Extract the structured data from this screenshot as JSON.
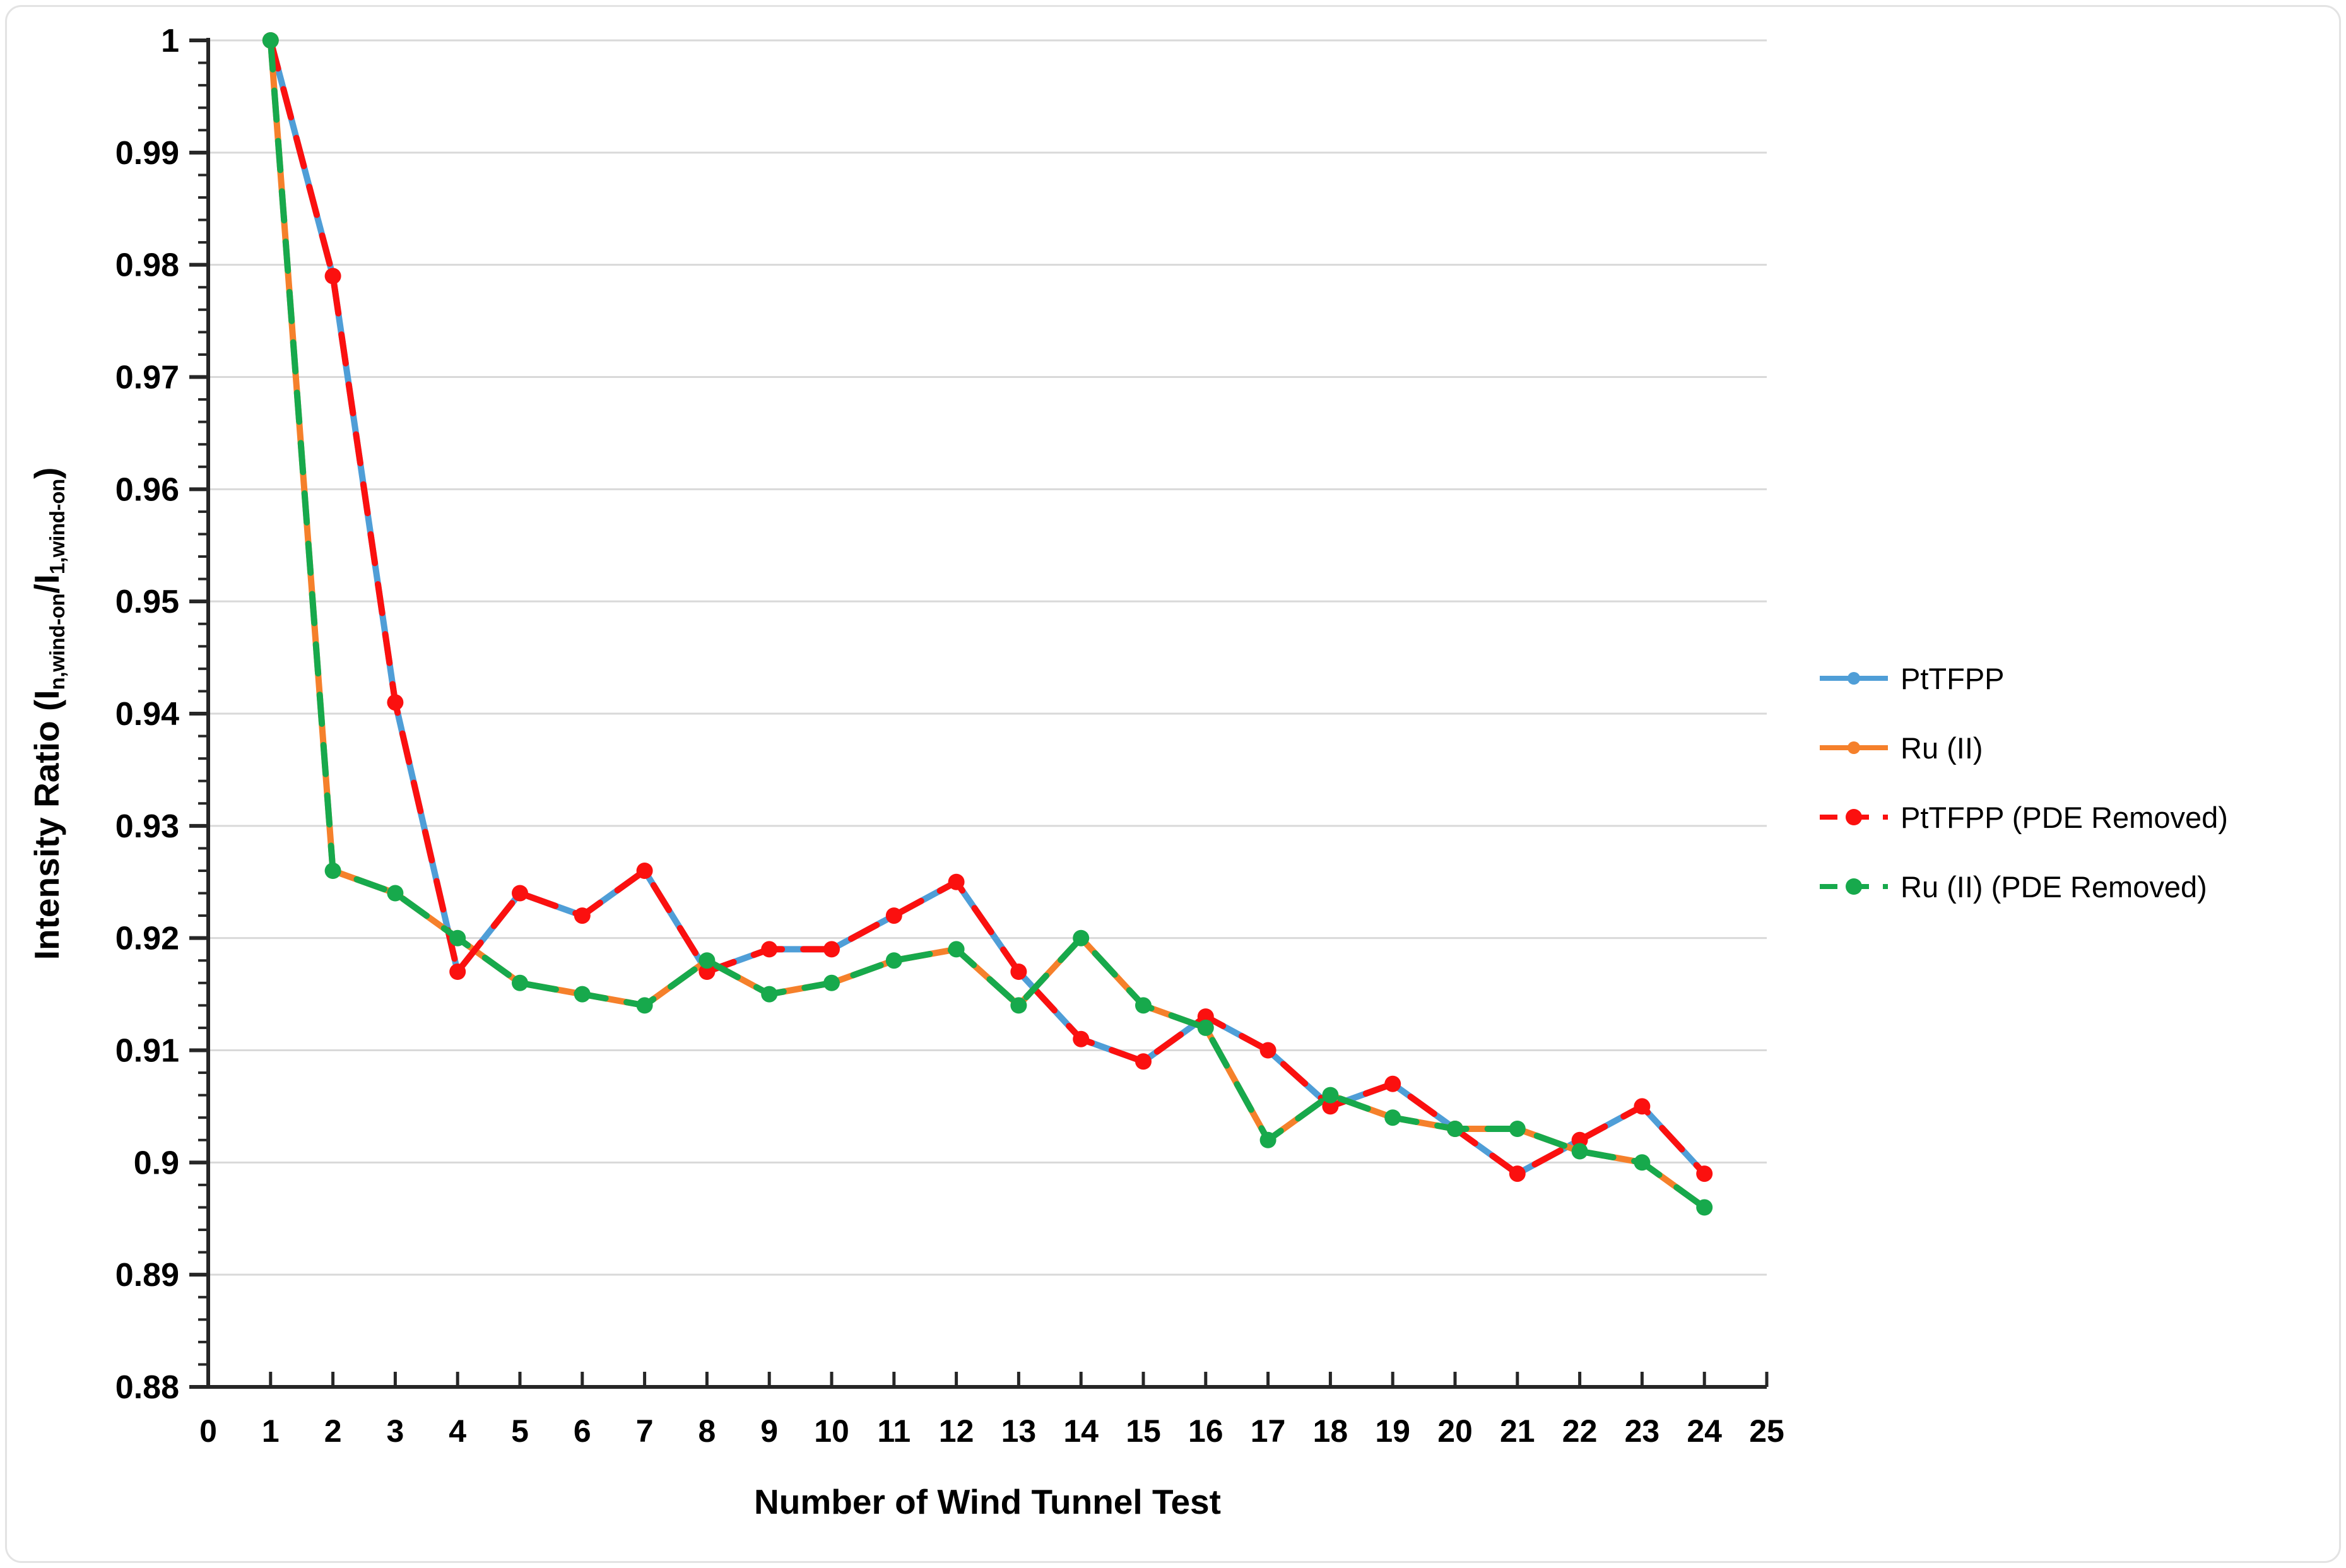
{
  "chart_data": {
    "type": "line",
    "title": "",
    "xlabel": "Number of Wind Tunnel Test",
    "ylabel_plain": "Intensity Ratio (In,wind-on/I1,wind-on)",
    "ylabel_parts": [
      {
        "text": "Intensity Ratio (I",
        "sub": false
      },
      {
        "text": "n,wind-on",
        "sub": true
      },
      {
        "text": "/I",
        "sub": false
      },
      {
        "text": "1,wind-on",
        "sub": true
      },
      {
        "text": ")",
        "sub": false
      }
    ],
    "xlim": [
      0,
      25
    ],
    "ylim": [
      0.88,
      1.0
    ],
    "x_tick_labels": [
      "0",
      "1",
      "2",
      "3",
      "4",
      "5",
      "6",
      "7",
      "8",
      "9",
      "10",
      "11",
      "12",
      "13",
      "14",
      "15",
      "16",
      "17",
      "18",
      "19",
      "20",
      "21",
      "22",
      "23",
      "24",
      "25"
    ],
    "y_tick_values": [
      0.88,
      0.89,
      0.9,
      0.91,
      0.92,
      0.93,
      0.94,
      0.95,
      0.96,
      0.97,
      0.98,
      0.99,
      1.0
    ],
    "y_tick_labels": [
      "0.88",
      "0.89",
      "0.9",
      "0.91",
      "0.92",
      "0.93",
      "0.94",
      "0.95",
      "0.96",
      "0.97",
      "0.98",
      "0.99",
      "1"
    ],
    "y_minor_step": 0.002,
    "grid": "horizontal",
    "grid_color": "#d9d9d9",
    "axis_color": "#262626",
    "legend_position": "right",
    "x": [
      1,
      2,
      3,
      4,
      5,
      6,
      7,
      8,
      9,
      10,
      11,
      12,
      13,
      14,
      15,
      16,
      17,
      18,
      19,
      20,
      21,
      22,
      23,
      24
    ],
    "series": [
      {
        "name": "PtTFPP",
        "color": "#4f9ed7",
        "style": "solid",
        "marker_r": 10,
        "values": [
          1.0,
          0.979,
          0.941,
          0.917,
          0.924,
          0.922,
          0.926,
          0.917,
          0.919,
          0.919,
          0.922,
          0.925,
          0.917,
          0.911,
          0.909,
          0.913,
          0.91,
          0.905,
          0.907,
          0.903,
          0.899,
          0.902,
          0.905,
          0.899
        ]
      },
      {
        "name": "Ru (II)",
        "color": "#f5802b",
        "style": "solid",
        "marker_r": 10,
        "values": [
          1.0,
          0.926,
          0.924,
          0.92,
          0.916,
          0.915,
          0.914,
          0.918,
          0.915,
          0.916,
          0.918,
          0.919,
          0.914,
          0.92,
          0.914,
          0.912,
          0.902,
          0.906,
          0.904,
          0.903,
          0.903,
          0.901,
          0.9,
          0.896
        ]
      },
      {
        "name": "PtTFPP (PDE Removed)",
        "color": "#fb100f",
        "style": "dashed",
        "marker_r": 13,
        "values": [
          1.0,
          0.979,
          0.941,
          0.917,
          0.924,
          0.922,
          0.926,
          0.917,
          0.919,
          0.919,
          0.922,
          0.925,
          0.917,
          0.911,
          0.909,
          0.913,
          0.91,
          0.905,
          0.907,
          0.903,
          0.899,
          0.902,
          0.905,
          0.899
        ]
      },
      {
        "name": "Ru (II) (PDE Removed)",
        "color": "#17a94c",
        "style": "dashed",
        "marker_r": 13,
        "values": [
          1.0,
          0.926,
          0.924,
          0.92,
          0.916,
          0.915,
          0.914,
          0.918,
          0.915,
          0.916,
          0.918,
          0.919,
          0.914,
          0.92,
          0.914,
          0.912,
          0.902,
          0.906,
          0.904,
          0.903,
          0.903,
          0.901,
          0.9,
          0.896
        ]
      }
    ]
  }
}
